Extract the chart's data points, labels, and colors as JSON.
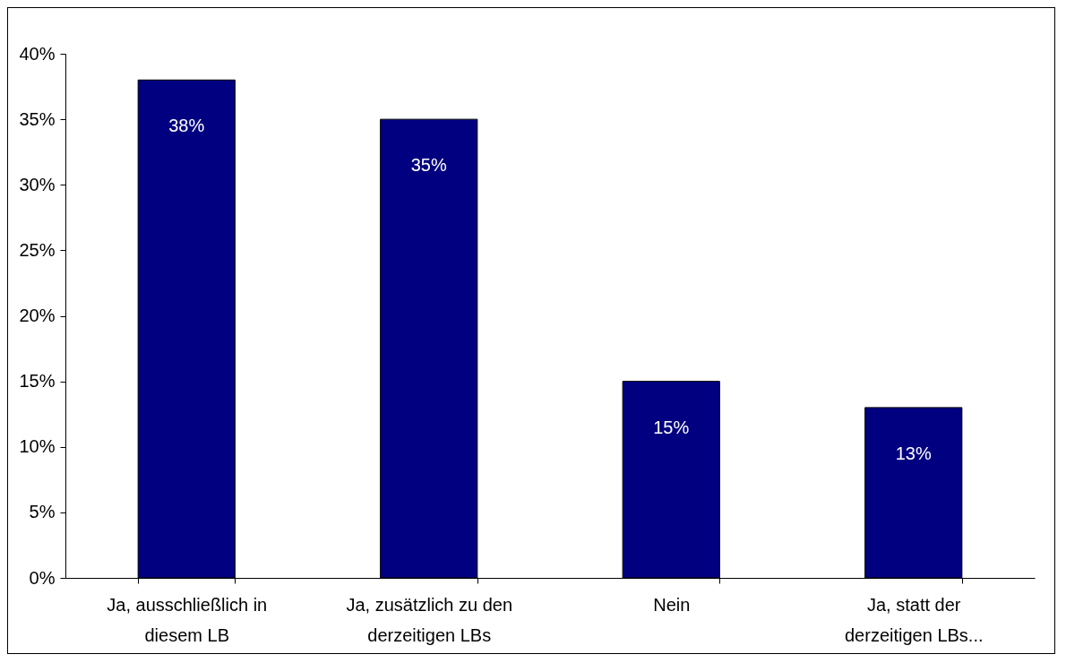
{
  "chart_data": {
    "type": "bar",
    "categories": [
      "Ja, ausschließlich in diesem LB",
      "Ja, zusätzlich zu den derzeitigen LBs",
      "Nein",
      "Ja, statt der derzeitigen LBs..."
    ],
    "values": [
      38,
      35,
      15,
      13
    ],
    "value_labels": [
      "38%",
      "35%",
      "15%",
      "13%"
    ],
    "color": "#000080",
    "ylim": [
      0,
      40
    ],
    "yticks": [
      {
        "value": 0,
        "label": "0%"
      },
      {
        "value": 5,
        "label": "5%"
      },
      {
        "value": 10,
        "label": "10%"
      },
      {
        "value": 15,
        "label": "15%"
      },
      {
        "value": 20,
        "label": "20%"
      },
      {
        "value": 25,
        "label": "25%"
      },
      {
        "value": 30,
        "label": "30%"
      },
      {
        "value": 35,
        "label": "35%"
      },
      {
        "value": 40,
        "label": "40%"
      }
    ],
    "grid": false
  }
}
